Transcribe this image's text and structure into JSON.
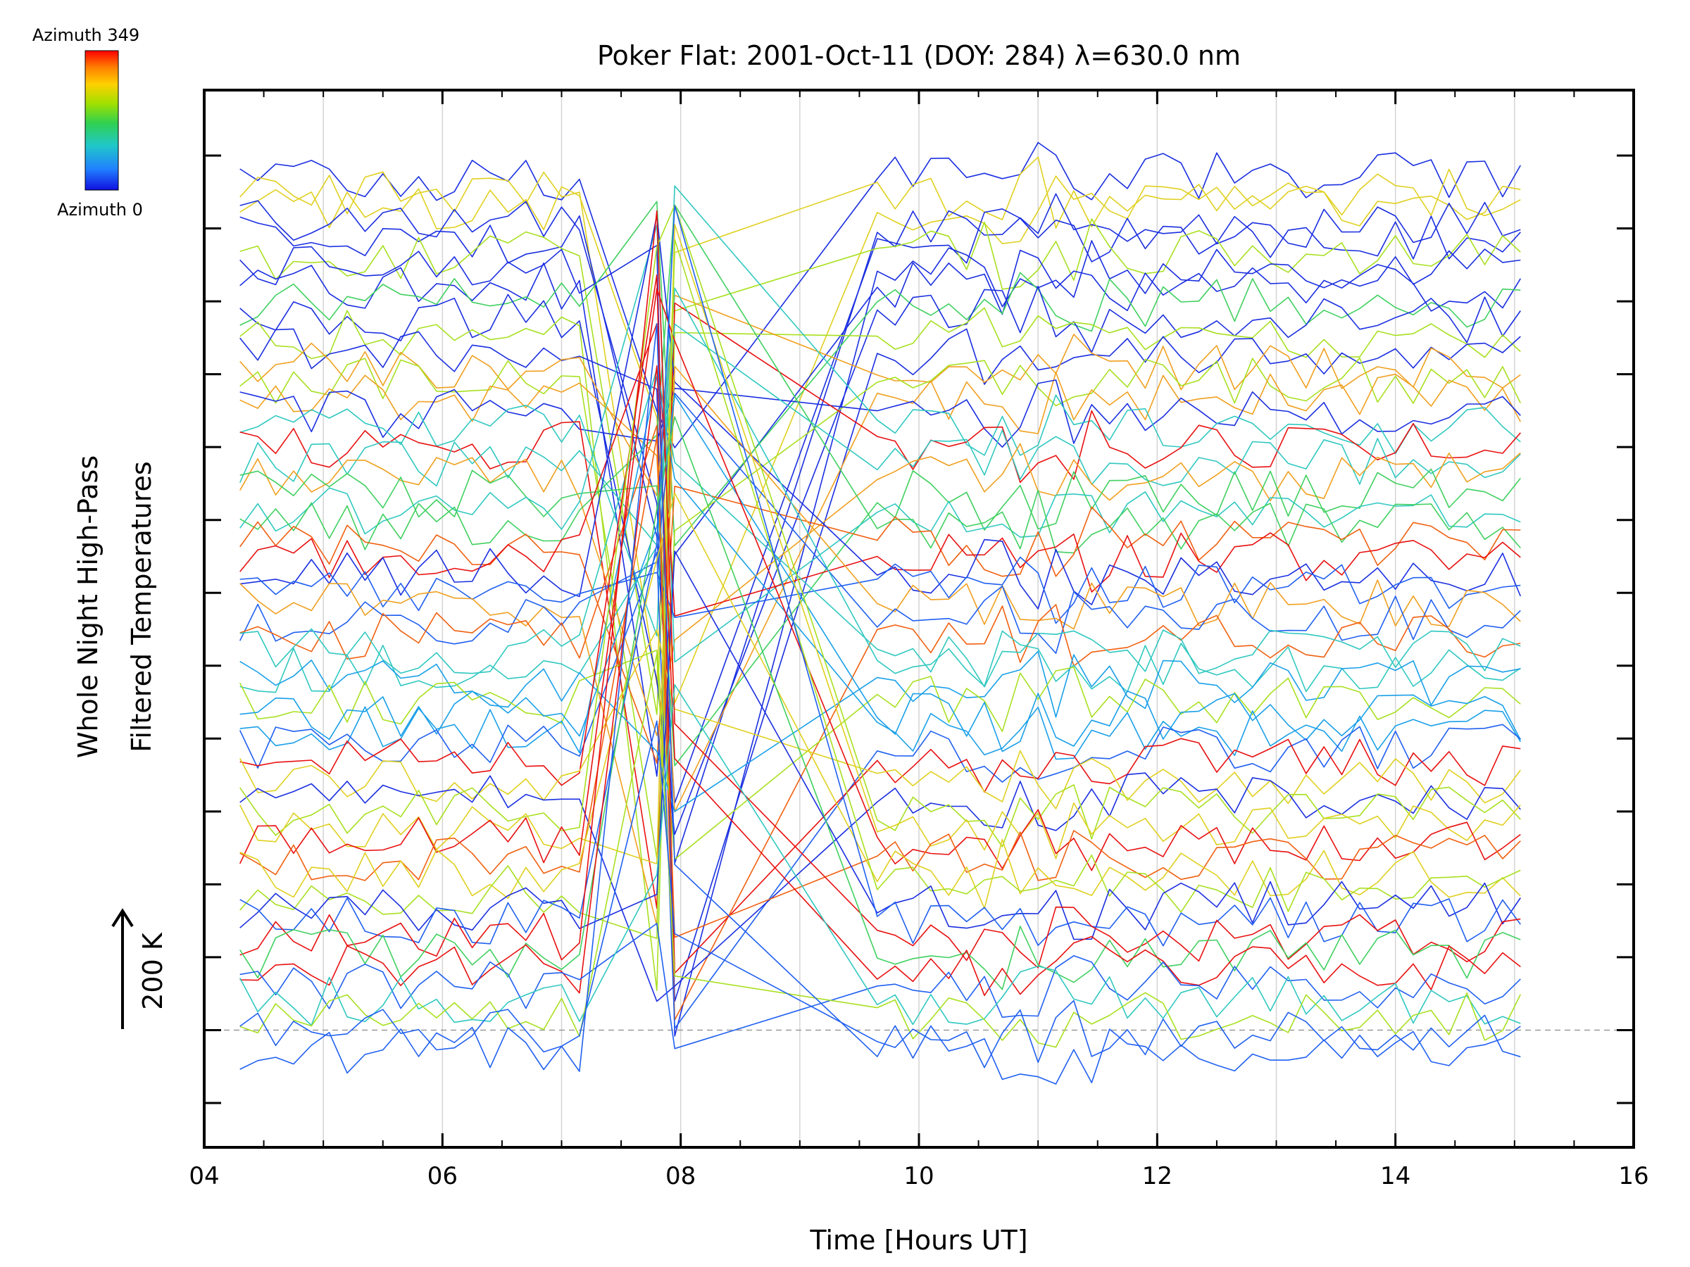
{
  "chart_data": {
    "type": "line",
    "title": "Poker Flat: 2001-Oct-11 (DOY: 284) λ=630.0 nm",
    "xlabel": "Time [Hours UT]",
    "ylabel_line1": "Whole Night High-Pass",
    "ylabel_line2": "Filtered Temperatures",
    "scale_label": "200 K",
    "xlim": [
      4,
      16
    ],
    "x_ticks": [
      "04",
      "06",
      "08",
      "10",
      "12",
      "14",
      "16"
    ],
    "x_tick_values": [
      4,
      6,
      8,
      10,
      12,
      14,
      16
    ],
    "y_tick_count": 14,
    "vertical_grid_hours": [
      5,
      6,
      7,
      8,
      9,
      10,
      11,
      12,
      13,
      14,
      15
    ],
    "colorbar": {
      "top_label": "Azimuth 349",
      "bottom_label": "Azimuth 0",
      "colors": [
        "#ff0000",
        "#ff8000",
        "#ffd000",
        "#a0e000",
        "#30d050",
        "#20c8c8",
        "#2080ff",
        "#1010e0"
      ]
    },
    "series_count": 56,
    "line_colors": [
      "#1a2fe0",
      "#2060f0",
      "#1aa0e8",
      "#30c8c0",
      "#40d060",
      "#a8e020",
      "#e0d020",
      "#f0a020",
      "#f06010",
      "#e81010"
    ],
    "time_samples": [
      4.3,
      4.45,
      4.6,
      4.75,
      4.9,
      5.05,
      5.2,
      5.35,
      5.5,
      5.65,
      5.8,
      5.95,
      6.1,
      6.25,
      6.4,
      6.55,
      6.7,
      6.85,
      7.0,
      7.15,
      7.8,
      7.95,
      9.65,
      9.8,
      9.95,
      10.1,
      10.25,
      10.4,
      10.55,
      10.7,
      10.85,
      11.0,
      11.15,
      11.3,
      11.45,
      11.6,
      11.75,
      11.9,
      12.05,
      12.2,
      12.35,
      12.5,
      12.65,
      12.8,
      12.95,
      13.1,
      13.25,
      13.4,
      13.55,
      13.7,
      13.85,
      14.0,
      14.15,
      14.3,
      14.45,
      14.6,
      14.75,
      14.9,
      15.05
    ],
    "baseline_tick_index": 12
  }
}
